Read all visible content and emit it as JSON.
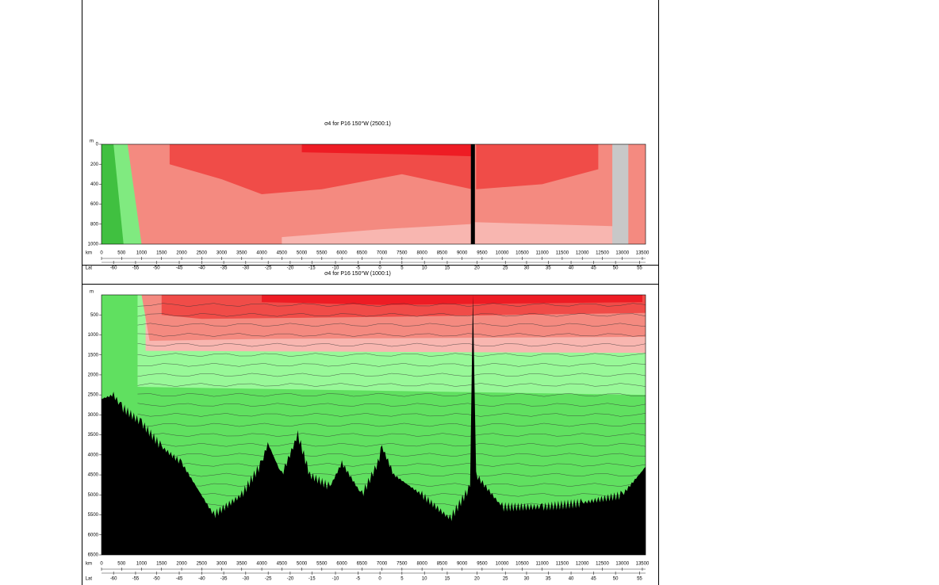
{
  "chart_data": [
    {
      "type": "section",
      "title": "σ4 for P16 150°W (2500:1)",
      "ylabel": "m",
      "xlabel": "km",
      "lat_label": "Lat",
      "xlim": [
        0,
        13580
      ],
      "ylim": [
        0,
        1000
      ],
      "xticks": [
        0,
        500,
        1000,
        1500,
        2000,
        2500,
        3000,
        3500,
        4000,
        4500,
        5000,
        5500,
        6000,
        6500,
        7000,
        7500,
        8000,
        8500,
        9000,
        9500,
        10000,
        10500,
        11000,
        11500,
        12000,
        12500,
        13000,
        13500
      ],
      "yticks": [
        0,
        200,
        400,
        600,
        800,
        1000
      ],
      "lat_ticks": [
        -60,
        -55,
        -50,
        -45,
        -40,
        -35,
        -30,
        -25,
        -20,
        -15,
        -10,
        -5,
        0,
        5,
        10,
        15,
        20,
        25,
        30,
        35,
        40,
        45,
        50,
        55
      ],
      "lat_ticks_km": [
        300,
        850,
        1370,
        1940,
        2500,
        3050,
        3600,
        4160,
        4710,
        5250,
        5840,
        6400,
        6950,
        7500,
        8060,
        8630,
        9370,
        10080,
        10610,
        11150,
        11720,
        12280,
        12830,
        13430
      ]
    },
    {
      "type": "section",
      "title": "σ4 for P16 150°W (1000:1)",
      "ylabel": "m",
      "xlabel": "km",
      "lat_label": "Lat",
      "xlim": [
        0,
        13580
      ],
      "ylim": [
        0,
        6500
      ],
      "xticks": [
        0,
        500,
        1000,
        1500,
        2000,
        2500,
        3000,
        3500,
        4000,
        4500,
        5000,
        5500,
        6000,
        6500,
        7000,
        7500,
        8000,
        8500,
        9000,
        9500,
        10000,
        10500,
        11000,
        11500,
        12000,
        12500,
        13000,
        13500
      ],
      "yticks": [
        500,
        1000,
        1500,
        2000,
        2500,
        3000,
        3500,
        4000,
        4500,
        5000,
        5500,
        6000,
        6500
      ],
      "lat_ticks": [
        -60,
        -55,
        -50,
        -45,
        -40,
        -35,
        -30,
        -25,
        -20,
        -15,
        -10,
        -5,
        0,
        5,
        10,
        15,
        20,
        25,
        30,
        35,
        40,
        45,
        50,
        55
      ],
      "lat_ticks_km": [
        300,
        850,
        1370,
        1940,
        2500,
        3050,
        3600,
        4160,
        4710,
        5250,
        5840,
        6400,
        6950,
        7500,
        8060,
        8630,
        9370,
        10080,
        10610,
        11150,
        11720,
        12280,
        12830,
        13430
      ]
    }
  ]
}
